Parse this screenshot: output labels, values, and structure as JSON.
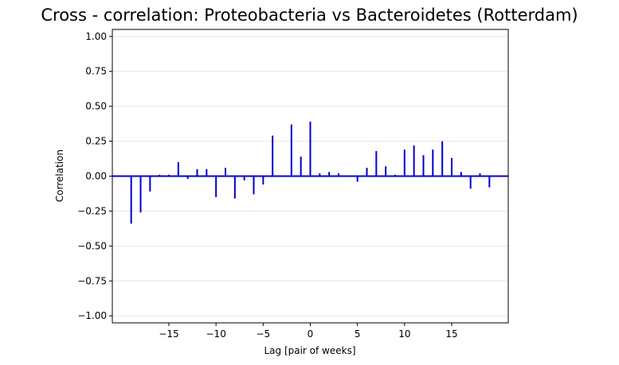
{
  "chart_data": {
    "type": "bar",
    "title": "Cross - correlation: Proteobacteria vs Bacteroidetes (Rotterdam)",
    "xlabel": "Lag [pair of weeks]",
    "ylabel": "Correlation",
    "xlim": [
      -21,
      21
    ],
    "ylim": [
      -1.05,
      1.05
    ],
    "grid": "horizontal",
    "x_ticks": [
      -15,
      -10,
      -5,
      0,
      5,
      10,
      15
    ],
    "x_tick_labels": [
      "−15",
      "−10",
      "−5",
      "0",
      "5",
      "10",
      "15"
    ],
    "y_ticks": [
      -1.0,
      -0.75,
      -0.5,
      -0.25,
      0.0,
      0.25,
      0.5,
      0.75,
      1.0
    ],
    "y_tick_labels": [
      "−1.00",
      "−0.75",
      "−0.50",
      "−0.25",
      "0.00",
      "0.25",
      "0.50",
      "0.75",
      "1.00"
    ],
    "color": "#0000cc",
    "lags": [
      -19,
      -18,
      -17,
      -16,
      -15,
      -14,
      -13,
      -12,
      -11,
      -10,
      -9,
      -8,
      -7,
      -6,
      -5,
      -4,
      -3,
      -2,
      -1,
      0,
      1,
      2,
      3,
      4,
      5,
      6,
      7,
      8,
      9,
      10,
      11,
      12,
      13,
      14,
      15,
      16,
      17,
      18,
      19
    ],
    "values": [
      -0.34,
      -0.26,
      -0.11,
      0.01,
      0.01,
      0.1,
      -0.02,
      0.05,
      0.05,
      -0.15,
      0.06,
      -0.16,
      -0.03,
      -0.13,
      -0.06,
      0.29,
      0.0,
      0.37,
      0.14,
      0.39,
      0.02,
      0.03,
      0.02,
      0.0,
      -0.04,
      0.06,
      0.18,
      0.07,
      0.01,
      0.19,
      0.22,
      0.15,
      0.19,
      0.25,
      0.13,
      0.03,
      -0.09,
      0.02,
      -0.08
    ]
  }
}
